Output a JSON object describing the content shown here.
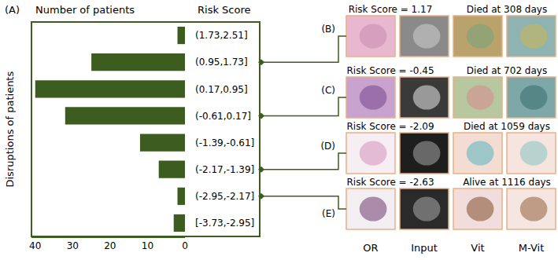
{
  "chart_data": {
    "type": "bar",
    "orientation": "horizontal",
    "panel_label": "(A)",
    "x_label": "Number of patients",
    "y_label": "Disruptions of patients",
    "category_header": "Risk Score",
    "categories": [
      "(1.73,2.51]",
      "(0.95,1.73]",
      "(0.17,0.95]",
      "(-0.61,0.17]",
      "(-1.39,-0.61]",
      "(-2.17,-1.39]",
      "(-2.95,-2.17]",
      "[-3.73,-2.95]"
    ],
    "values": [
      2,
      25,
      40,
      32,
      12,
      7,
      2,
      3
    ],
    "color": "#3d5c1f",
    "xlim": [
      41,
      0
    ],
    "xticks": [
      40,
      30,
      20,
      10,
      0
    ],
    "grid": false
  },
  "panels": [
    {
      "label": "(B)",
      "category": "(0.95,1.73]",
      "title": "Risk Score = 1.17",
      "outcome": "Died at 308 days"
    },
    {
      "label": "(C)",
      "category": "(-0.61,0.17]",
      "title": "Risk Score = -0.45",
      "outcome": "Died at 702 days"
    },
    {
      "label": "(D)",
      "category": "(-2.17,-1.39]",
      "title": "Risk Score = -2.09",
      "outcome": "Died at 1059 days"
    },
    {
      "label": "(E)",
      "category": "(-2.95,-2.17]",
      "title": "Risk Score = -2.63",
      "outcome": "Alive at 1116 days"
    }
  ],
  "columns": [
    "OR",
    "Input",
    "Vit",
    "M-Vit"
  ]
}
